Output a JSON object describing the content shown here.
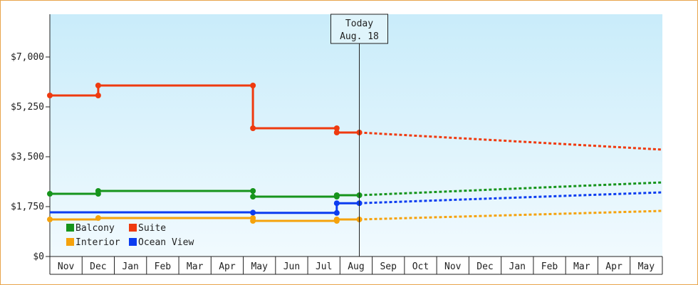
{
  "chart_data": {
    "type": "line",
    "x": [
      "Nov",
      "Dec",
      "Jan",
      "Feb",
      "Mar",
      "Apr",
      "May",
      "Jun",
      "Jul",
      "Aug",
      "Sep",
      "Oct",
      "Nov",
      "Dec",
      "Jan",
      "Feb",
      "Mar",
      "Apr",
      "May"
    ],
    "y_ticks": [
      "$0",
      "$1,750",
      "$3,500",
      "$5,250",
      "$7,000"
    ],
    "ylim": [
      0,
      8500
    ],
    "grid": false,
    "legend_placement": "bottom-left",
    "today_marker": {
      "line1": "Today",
      "line2": "Aug. 18"
    },
    "series": [
      {
        "name": "Balcony",
        "color": "#16941c",
        "history": [
          [
            0,
            2200
          ],
          [
            1.5,
            2200
          ],
          [
            1.5,
            2300
          ],
          [
            6.3,
            2300
          ],
          [
            6.3,
            2100
          ],
          [
            8.9,
            2100
          ],
          [
            8.9,
            2150
          ],
          [
            9.6,
            2150
          ]
        ],
        "markers": [
          [
            0,
            2200
          ],
          [
            1.5,
            2200
          ],
          [
            1.5,
            2300
          ],
          [
            6.3,
            2300
          ],
          [
            6.3,
            2100
          ],
          [
            8.9,
            2100
          ],
          [
            8.9,
            2150
          ],
          [
            9.6,
            2150
          ]
        ],
        "forecast": [
          [
            9.6,
            2150
          ],
          [
            19,
            2600
          ]
        ]
      },
      {
        "name": "Suite",
        "color": "#ef3a0f",
        "history": [
          [
            0,
            5650
          ],
          [
            1.5,
            5650
          ],
          [
            1.5,
            6000
          ],
          [
            6.3,
            6000
          ],
          [
            6.3,
            4500
          ],
          [
            8.9,
            4500
          ],
          [
            8.9,
            4350
          ],
          [
            9.6,
            4350
          ]
        ],
        "markers": [
          [
            0,
            5650
          ],
          [
            1.5,
            5650
          ],
          [
            1.5,
            6000
          ],
          [
            6.3,
            6000
          ],
          [
            6.3,
            4500
          ],
          [
            8.9,
            4500
          ],
          [
            8.9,
            4350
          ],
          [
            9.6,
            4350
          ]
        ],
        "forecast": [
          [
            9.6,
            4350
          ],
          [
            19,
            3750
          ]
        ]
      },
      {
        "name": "Interior",
        "color": "#f5a20c",
        "history": [
          [
            0,
            1300
          ],
          [
            1.5,
            1300
          ],
          [
            1.5,
            1350
          ],
          [
            6.3,
            1350
          ],
          [
            6.3,
            1250
          ],
          [
            8.9,
            1250
          ],
          [
            8.9,
            1300
          ],
          [
            9.6,
            1300
          ]
        ],
        "markers": [
          [
            0,
            1300
          ],
          [
            1.5,
            1350
          ],
          [
            6.3,
            1350
          ],
          [
            6.3,
            1250
          ],
          [
            8.9,
            1250
          ],
          [
            8.9,
            1300
          ],
          [
            9.6,
            1300
          ]
        ],
        "forecast": [
          [
            9.6,
            1300
          ],
          [
            19,
            1600
          ]
        ]
      },
      {
        "name": "Ocean View",
        "color": "#0b3cf0",
        "history": [
          [
            0,
            1550
          ],
          [
            6.3,
            1550
          ],
          [
            6.3,
            1530
          ],
          [
            8.9,
            1530
          ],
          [
            8.9,
            1870
          ],
          [
            9.6,
            1870
          ]
        ],
        "markers": [
          [
            6.3,
            1540
          ],
          [
            8.9,
            1530
          ],
          [
            8.9,
            1870
          ],
          [
            9.6,
            1870
          ]
        ],
        "forecast": [
          [
            9.6,
            1870
          ],
          [
            19,
            2250
          ]
        ]
      }
    ]
  }
}
